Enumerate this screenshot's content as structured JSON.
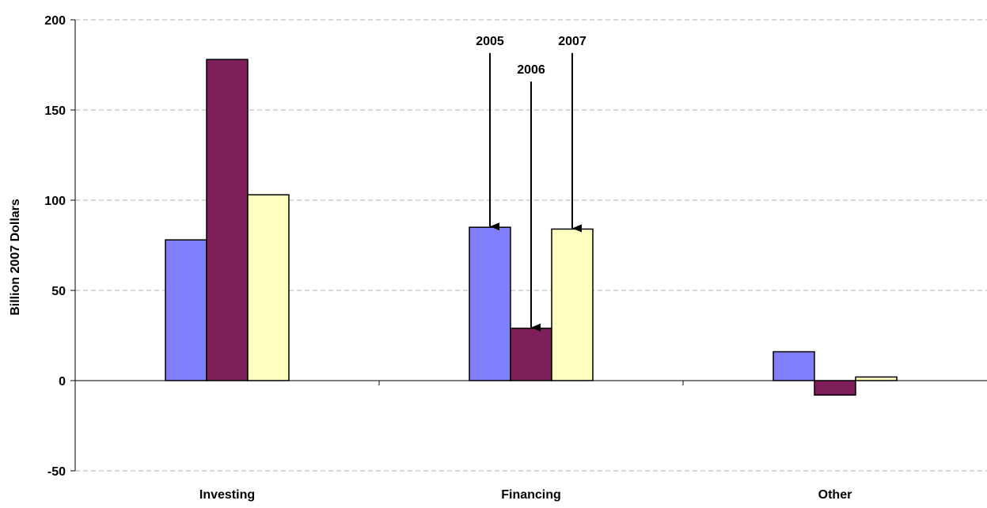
{
  "chart_data": {
    "type": "bar",
    "title": "",
    "xlabel": "",
    "ylabel": "Billion 2007 Dollars",
    "categories": [
      "Investing",
      "Financing",
      "Other"
    ],
    "series": [
      {
        "name": "2005",
        "color": "#8080FF",
        "values": [
          78,
          85,
          16
        ]
      },
      {
        "name": "2006",
        "color": "#7F1F5A",
        "values": [
          178,
          29,
          -8
        ]
      },
      {
        "name": "2007",
        "color": "#FFFFC0",
        "values": [
          103,
          84,
          2
        ]
      }
    ],
    "ylim": [
      -50,
      200
    ],
    "yticks": [
      200,
      150,
      100,
      50,
      0,
      -50
    ],
    "grid": true,
    "grid_style": "dashed",
    "legend": "none",
    "annotations": [
      {
        "text": "2005",
        "category": "Financing",
        "series": "2005"
      },
      {
        "text": "2006",
        "category": "Financing",
        "series": "2006"
      },
      {
        "text": "2007",
        "category": "Financing",
        "series": "2007"
      }
    ]
  }
}
